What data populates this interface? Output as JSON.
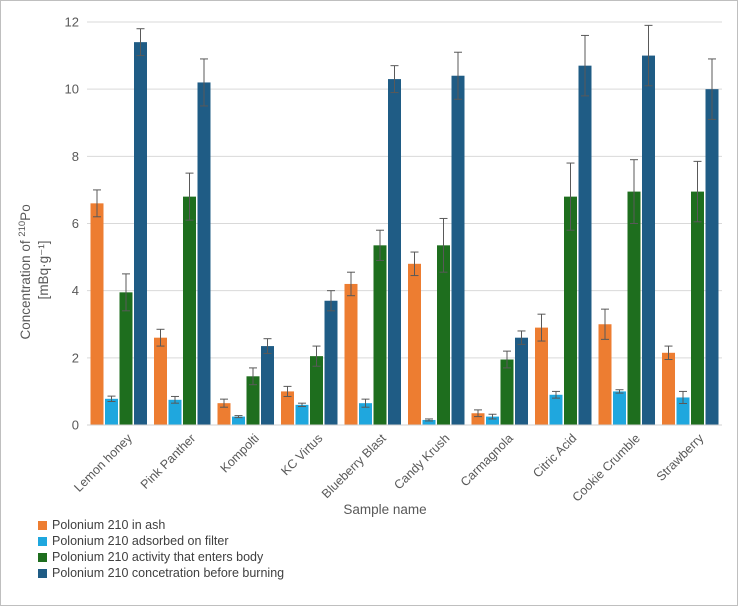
{
  "chart_data": {
    "type": "bar",
    "title": "",
    "xlabel": "Sample name",
    "ylabel_line1_prefix": "Concentration of ",
    "ylabel_sup": "210",
    "ylabel_line1_suffix": "Po",
    "ylabel_line2": "[mBq·g⁻¹]",
    "ylim": [
      0,
      12
    ],
    "yticks": [
      0,
      2,
      4,
      6,
      8,
      10,
      12
    ],
    "grid": true,
    "legend_position": "bottom-left",
    "categories": [
      "Lemon honey",
      "Pink Panther",
      "Kompolti",
      "KC Virtus",
      "Blueberry Blast",
      "Candy Krush",
      "Carmagnola",
      "Citric Acid",
      "Cookie Crumble",
      "Strawberry"
    ],
    "series": [
      {
        "name": "Polonium 210 in ash",
        "color": "#ED7D31",
        "values": [
          6.6,
          2.6,
          0.65,
          1.0,
          4.2,
          4.8,
          0.35,
          2.9,
          3.0,
          2.15
        ],
        "errors": [
          0.4,
          0.25,
          0.12,
          0.15,
          0.35,
          0.35,
          0.1,
          0.4,
          0.45,
          0.2
        ]
      },
      {
        "name": "Polonium 210 adsorbed on filter",
        "color": "#1FA7DE",
        "values": [
          0.78,
          0.75,
          0.25,
          0.6,
          0.65,
          0.15,
          0.25,
          0.9,
          1.0,
          0.82
        ],
        "errors": [
          0.08,
          0.1,
          0.03,
          0.05,
          0.12,
          0.03,
          0.07,
          0.1,
          0.05,
          0.18
        ]
      },
      {
        "name": "Polonium 210 activity that enters body",
        "color": "#1E6E1E",
        "values": [
          3.95,
          6.8,
          1.45,
          2.05,
          5.35,
          5.35,
          1.95,
          6.8,
          6.95,
          6.95
        ],
        "errors": [
          0.55,
          0.7,
          0.25,
          0.3,
          0.45,
          0.8,
          0.25,
          1.0,
          0.95,
          0.9
        ]
      },
      {
        "name": "Polonium 210 concetration before burning",
        "color": "#1F5C85",
        "values": [
          11.4,
          10.2,
          2.35,
          3.7,
          10.3,
          10.4,
          2.6,
          10.7,
          11.0,
          10.0
        ],
        "errors": [
          0.4,
          0.7,
          0.22,
          0.3,
          0.4,
          0.7,
          0.2,
          0.9,
          0.9,
          0.9
        ]
      }
    ]
  }
}
